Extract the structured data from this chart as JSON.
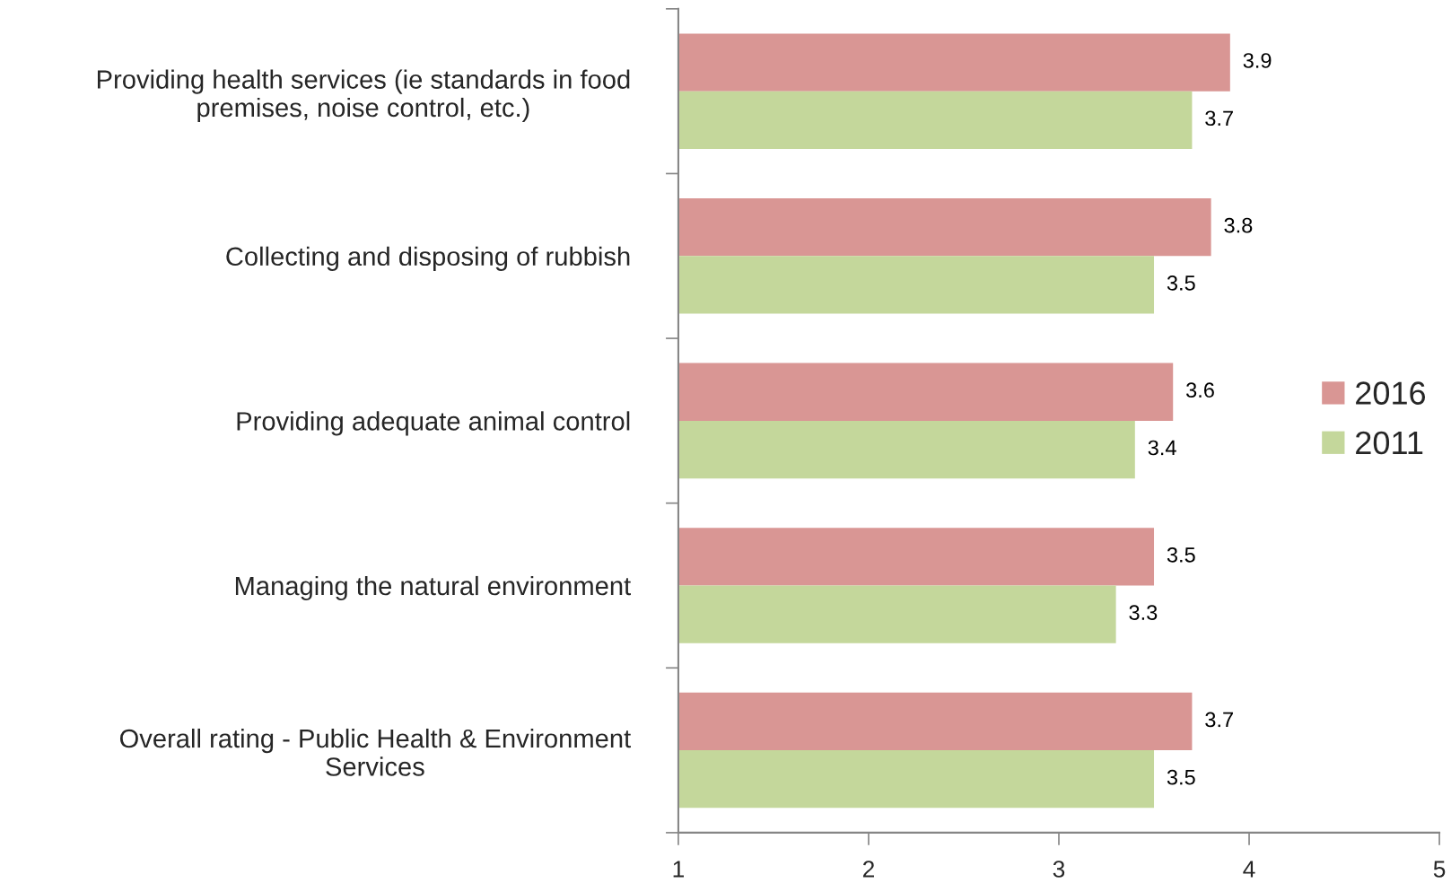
{
  "chart_data": {
    "type": "bar",
    "orientation": "horizontal",
    "categories": [
      "Providing health services (ie standards in food\npremises, noise control, etc.)",
      "Collecting and disposing of rubbish",
      "Providing adequate animal control",
      "Managing the natural environment",
      "Overall rating - Public Health & Environment\nServices"
    ],
    "series": [
      {
        "name": "2016",
        "color": "#d99694",
        "values": [
          3.9,
          3.8,
          3.6,
          3.5,
          3.7
        ]
      },
      {
        "name": "2011",
        "color": "#c4d79b",
        "values": [
          3.7,
          3.5,
          3.4,
          3.3,
          3.5
        ]
      }
    ],
    "xlim": [
      1,
      5
    ],
    "xticks": [
      1,
      2,
      3,
      4,
      5
    ],
    "legend": "right",
    "data_labels": true
  }
}
